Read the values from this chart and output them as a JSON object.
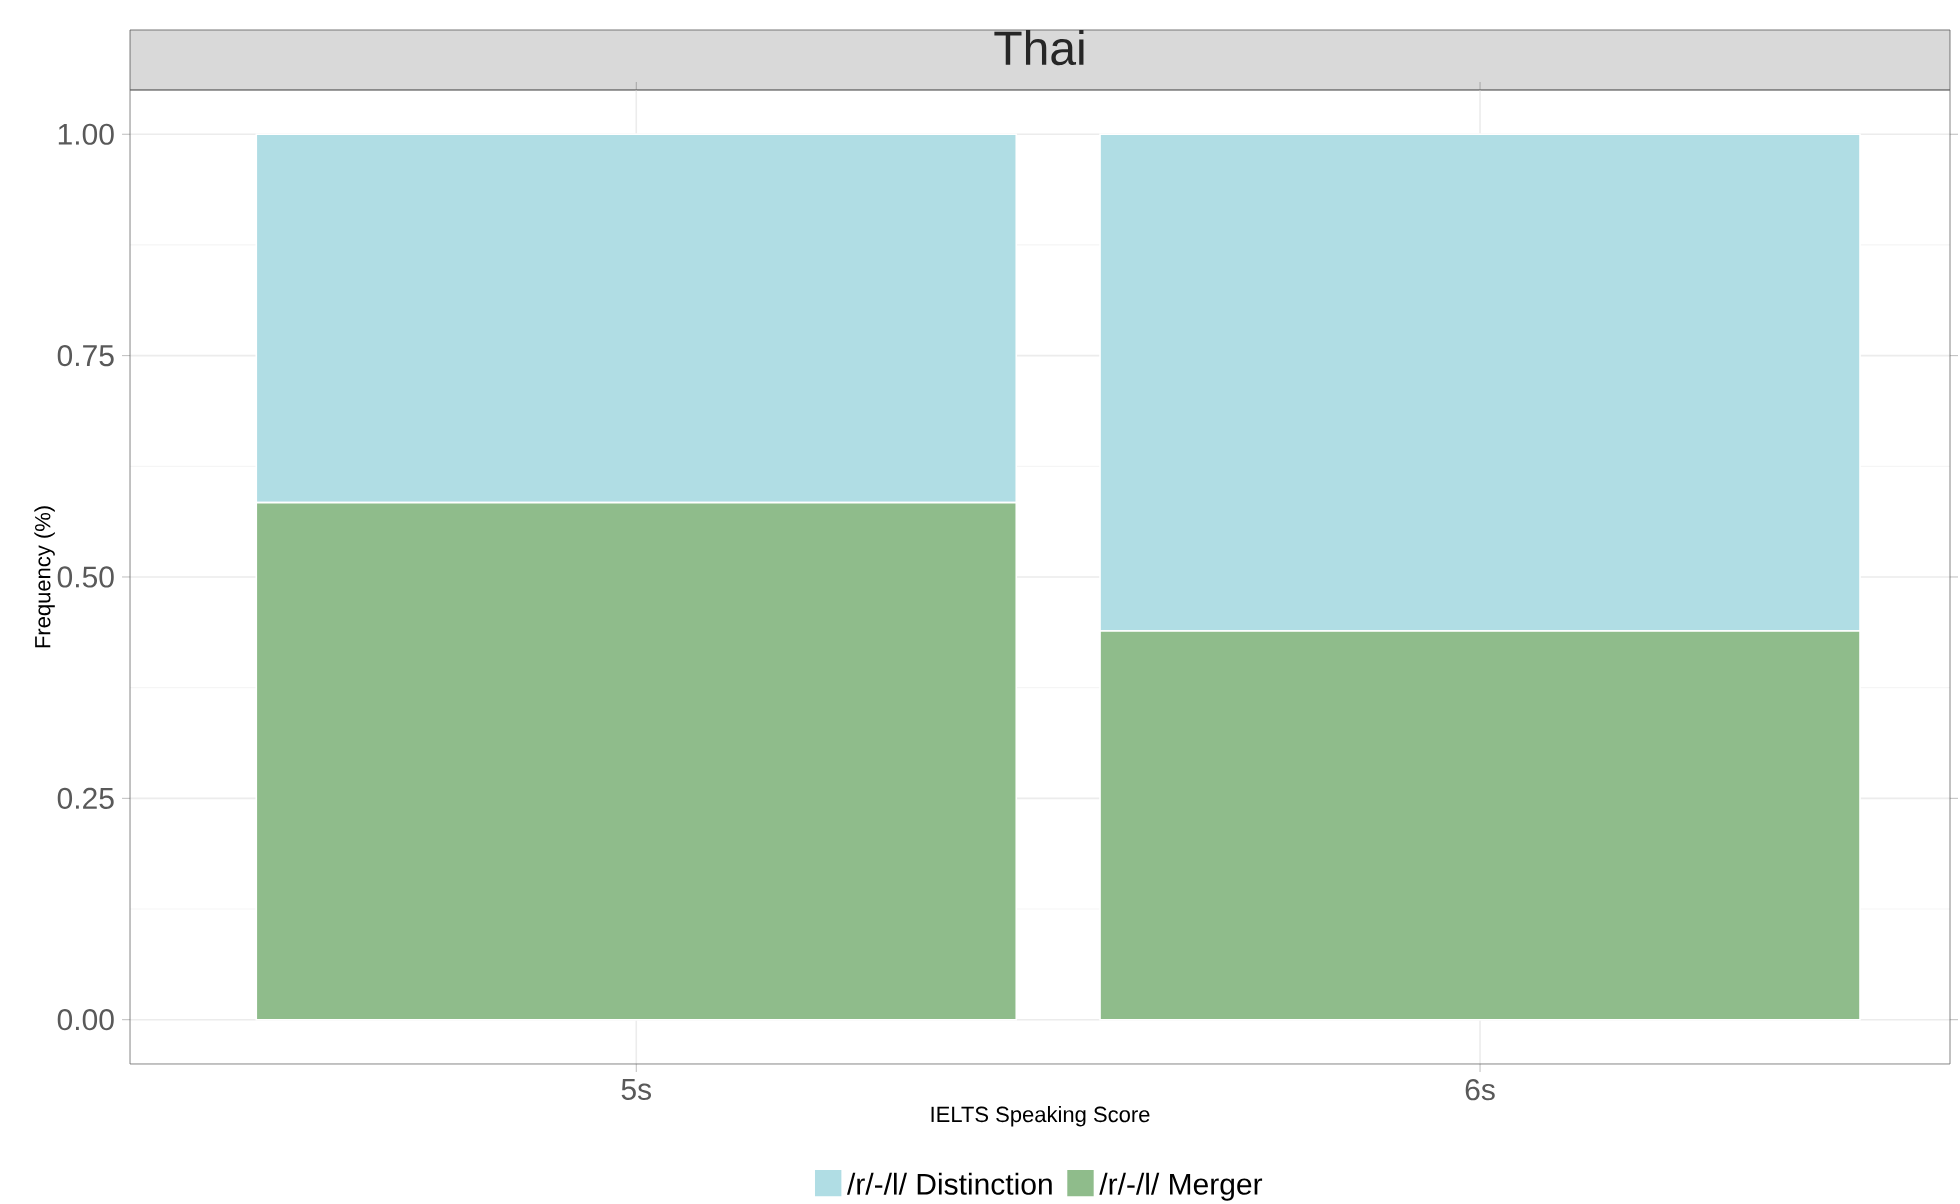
{
  "chart_data": {
    "type": "bar",
    "stacked": true,
    "title": "Thai",
    "xlabel": "IELTS Speaking Score",
    "ylabel": "Frequency (%)",
    "categories": [
      "5s",
      "6s"
    ],
    "series": [
      {
        "name": "/r/-/l/ Merger",
        "color": "#8fbc8b",
        "values": [
          0.584,
          0.439
        ]
      },
      {
        "name": "/r/-/l/ Distinction",
        "color": "#b0dde4",
        "values": [
          0.416,
          0.561
        ]
      }
    ],
    "ylim": [
      -0.05,
      1.05
    ],
    "yticks": [
      {
        "value": 0,
        "label": "0.00"
      },
      {
        "value": 0.25,
        "label": "0.25"
      },
      {
        "value": 0.5,
        "label": "0.50"
      },
      {
        "value": 0.75,
        "label": "0.75"
      },
      {
        "value": 1,
        "label": "1.00"
      }
    ],
    "grid": true,
    "legend": "bottom"
  }
}
